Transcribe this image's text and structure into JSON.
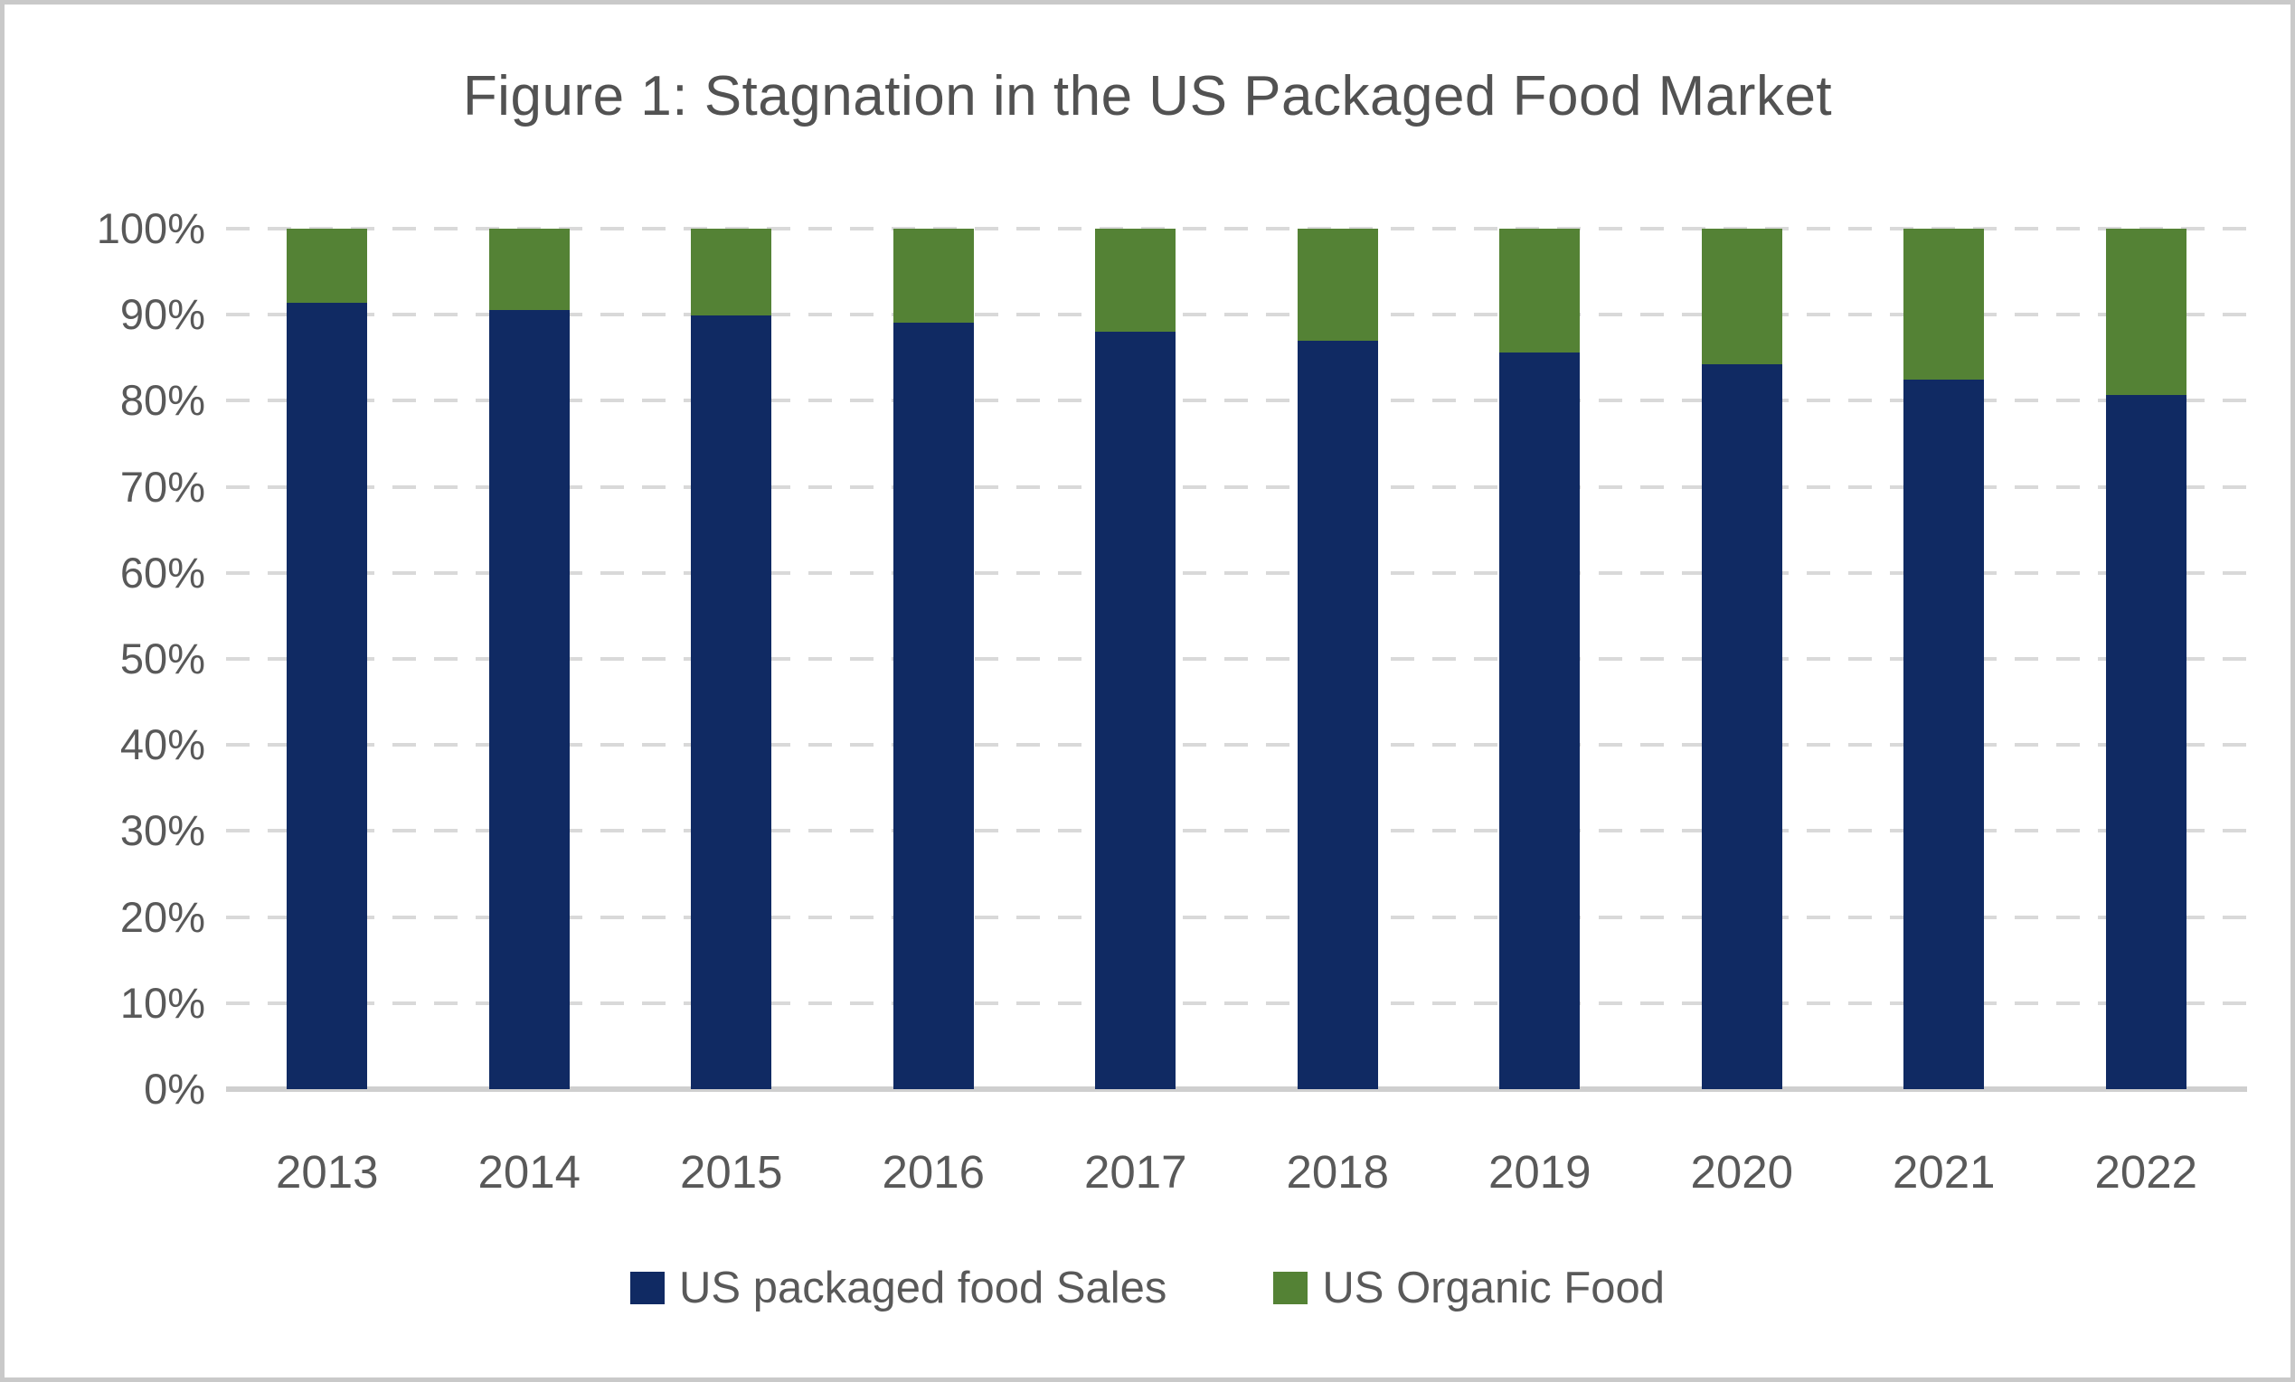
{
  "chart_data": {
    "type": "bar",
    "stacked": true,
    "percent_stacked": true,
    "title": "Figure 1: Stagnation in the US Packaged Food Market",
    "categories": [
      "2013",
      "2014",
      "2015",
      "2016",
      "2017",
      "2018",
      "2019",
      "2020",
      "2021",
      "2022"
    ],
    "series": [
      {
        "name": "US packaged food Sales",
        "color": "#102a63",
        "values": [
          91.4,
          90.5,
          89.9,
          89.1,
          88.0,
          87.0,
          85.6,
          84.2,
          82.5,
          80.7
        ]
      },
      {
        "name": "US Organic Food",
        "color": "#548235",
        "values": [
          8.6,
          9.5,
          10.1,
          10.9,
          12.0,
          13.0,
          14.4,
          15.8,
          17.5,
          19.3
        ]
      }
    ],
    "xlabel": "",
    "ylabel": "",
    "ylim": [
      0,
      100
    ],
    "y_ticks_top_to_bottom": [
      "100%",
      "90%",
      "80%",
      "70%",
      "60%",
      "50%",
      "40%",
      "30%",
      "20%",
      "10%",
      "0%"
    ],
    "grid": "horizontal dashed",
    "legend_position": "bottom"
  },
  "colors": {
    "packaged_food": "#102a63",
    "organic_food": "#548235",
    "gridline": "#d9d9d9",
    "axis_line": "#cfcfcf",
    "text": "#595959",
    "title": "#525252",
    "frame_border": "#c9c9c9",
    "background": "#ffffff"
  }
}
